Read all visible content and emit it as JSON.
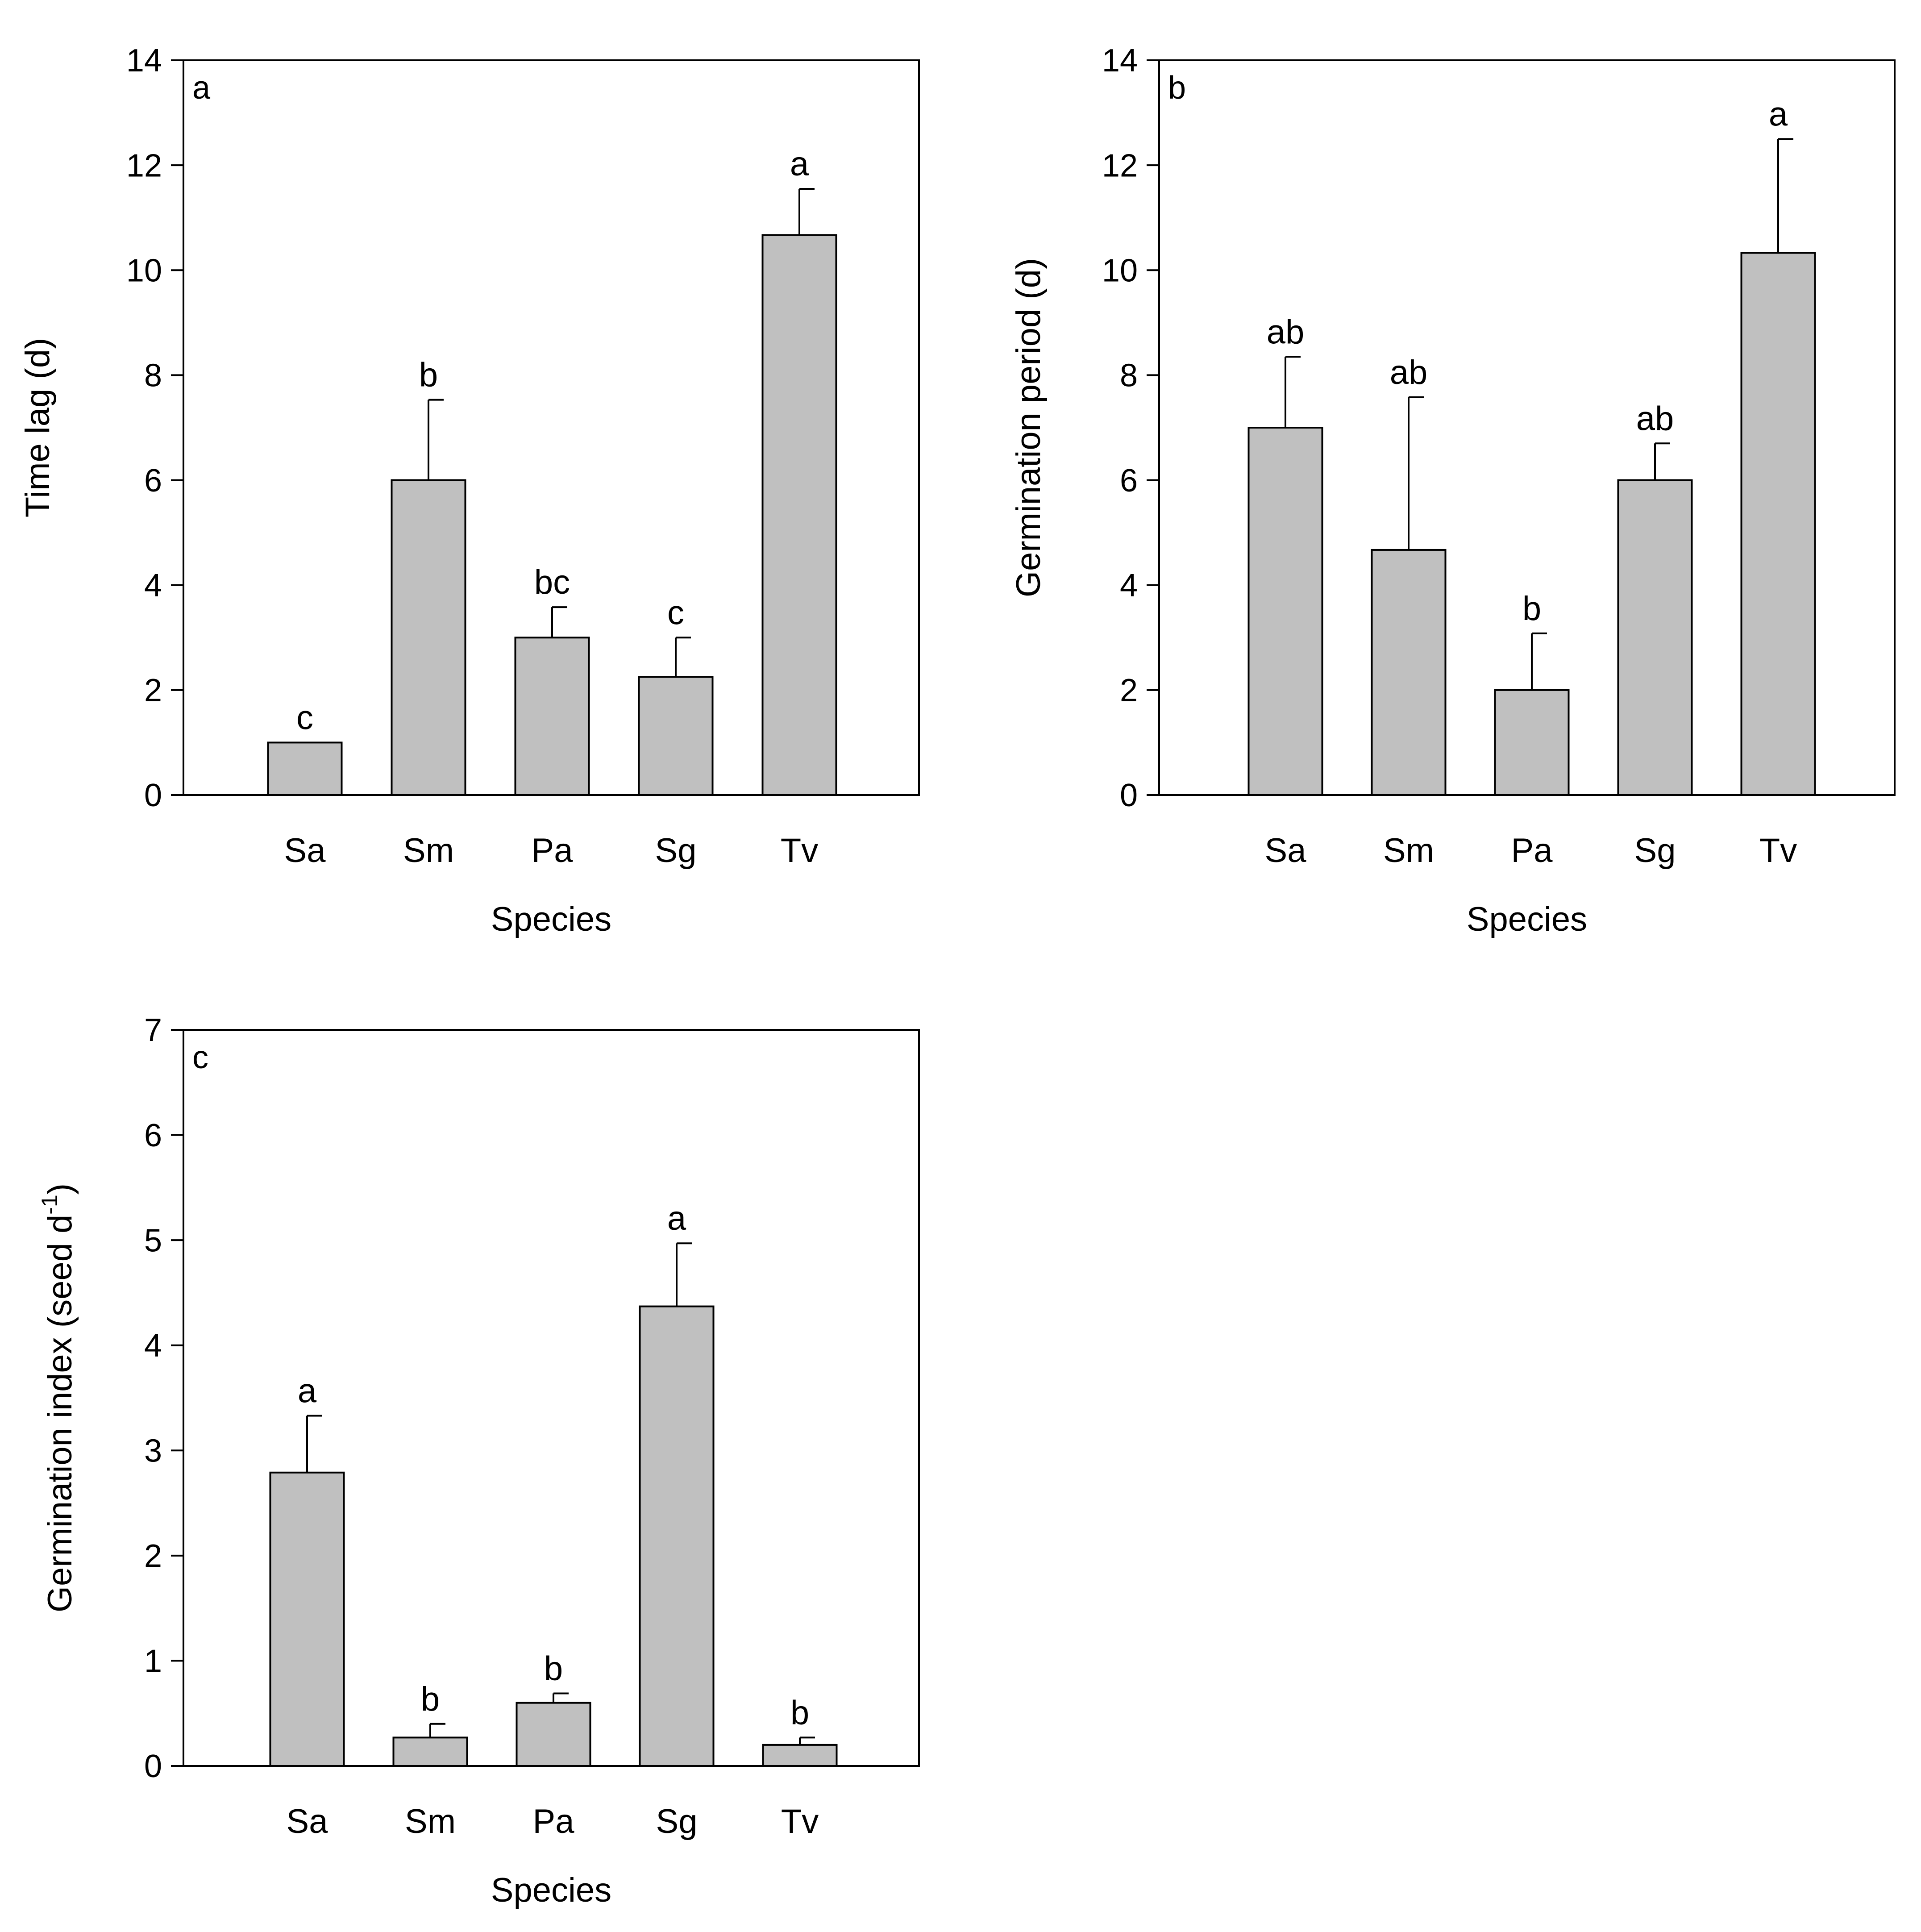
{
  "colors": {
    "bar_fill": "#c0c0c0",
    "axis": "#000000",
    "background": "#ffffff"
  },
  "chart_data": [
    {
      "type": "bar",
      "panel_label": "a",
      "categories": [
        "Sa",
        "Sm",
        "Pa",
        "Sg",
        "Tv"
      ],
      "values": [
        1.0,
        6.0,
        3.0,
        2.25,
        10.67
      ],
      "errors": [
        0.0,
        1.53,
        0.58,
        0.75,
        0.88
      ],
      "significance": [
        "c",
        "b",
        "bc",
        "c",
        "a"
      ],
      "xlabel": "Species",
      "ylabel": "Time lag (d)",
      "ylim": [
        0,
        14
      ],
      "yticks": [
        0,
        2,
        4,
        6,
        8,
        10,
        12,
        14
      ],
      "ytick_labels": [
        "0",
        "2",
        "4",
        "6",
        "8",
        "10",
        "12",
        "14"
      ],
      "grid": false
    },
    {
      "type": "bar",
      "panel_label": "b",
      "categories": [
        "Sa",
        "Sm",
        "Pa",
        "Sg",
        "Tv"
      ],
      "values": [
        7.0,
        4.67,
        2.0,
        6.0,
        10.33
      ],
      "errors": [
        1.35,
        2.91,
        1.08,
        0.7,
        2.17
      ],
      "significance": [
        "ab",
        "ab",
        "b",
        "ab",
        "a"
      ],
      "xlabel": "Species",
      "ylabel": "Germination period (d)",
      "ylim": [
        0,
        14
      ],
      "yticks": [
        0,
        2,
        4,
        6,
        8,
        10,
        12,
        14
      ],
      "ytick_labels": [
        "0",
        "2",
        "4",
        "6",
        "8",
        "10",
        "12",
        "14"
      ],
      "grid": false
    },
    {
      "type": "bar",
      "panel_label": "c",
      "categories": [
        "Sa",
        "Sm",
        "Pa",
        "Sg",
        "Tv"
      ],
      "values": [
        2.79,
        0.27,
        0.6,
        4.37,
        0.2
      ],
      "errors": [
        0.54,
        0.13,
        0.09,
        0.6,
        0.07
      ],
      "significance": [
        "a",
        "b",
        "b",
        "a",
        "b"
      ],
      "xlabel": "Species",
      "ylabel": "Germination index (seed d",
      "ylabel_superscript": "-1",
      "ylabel_suffix": ")",
      "ylim": [
        0,
        7
      ],
      "yticks": [
        0,
        1,
        2,
        3,
        4,
        5,
        6,
        7
      ],
      "ytick_labels": [
        "0",
        "1",
        "2",
        "3",
        "4",
        "5",
        "6",
        "7"
      ],
      "grid": false
    }
  ]
}
